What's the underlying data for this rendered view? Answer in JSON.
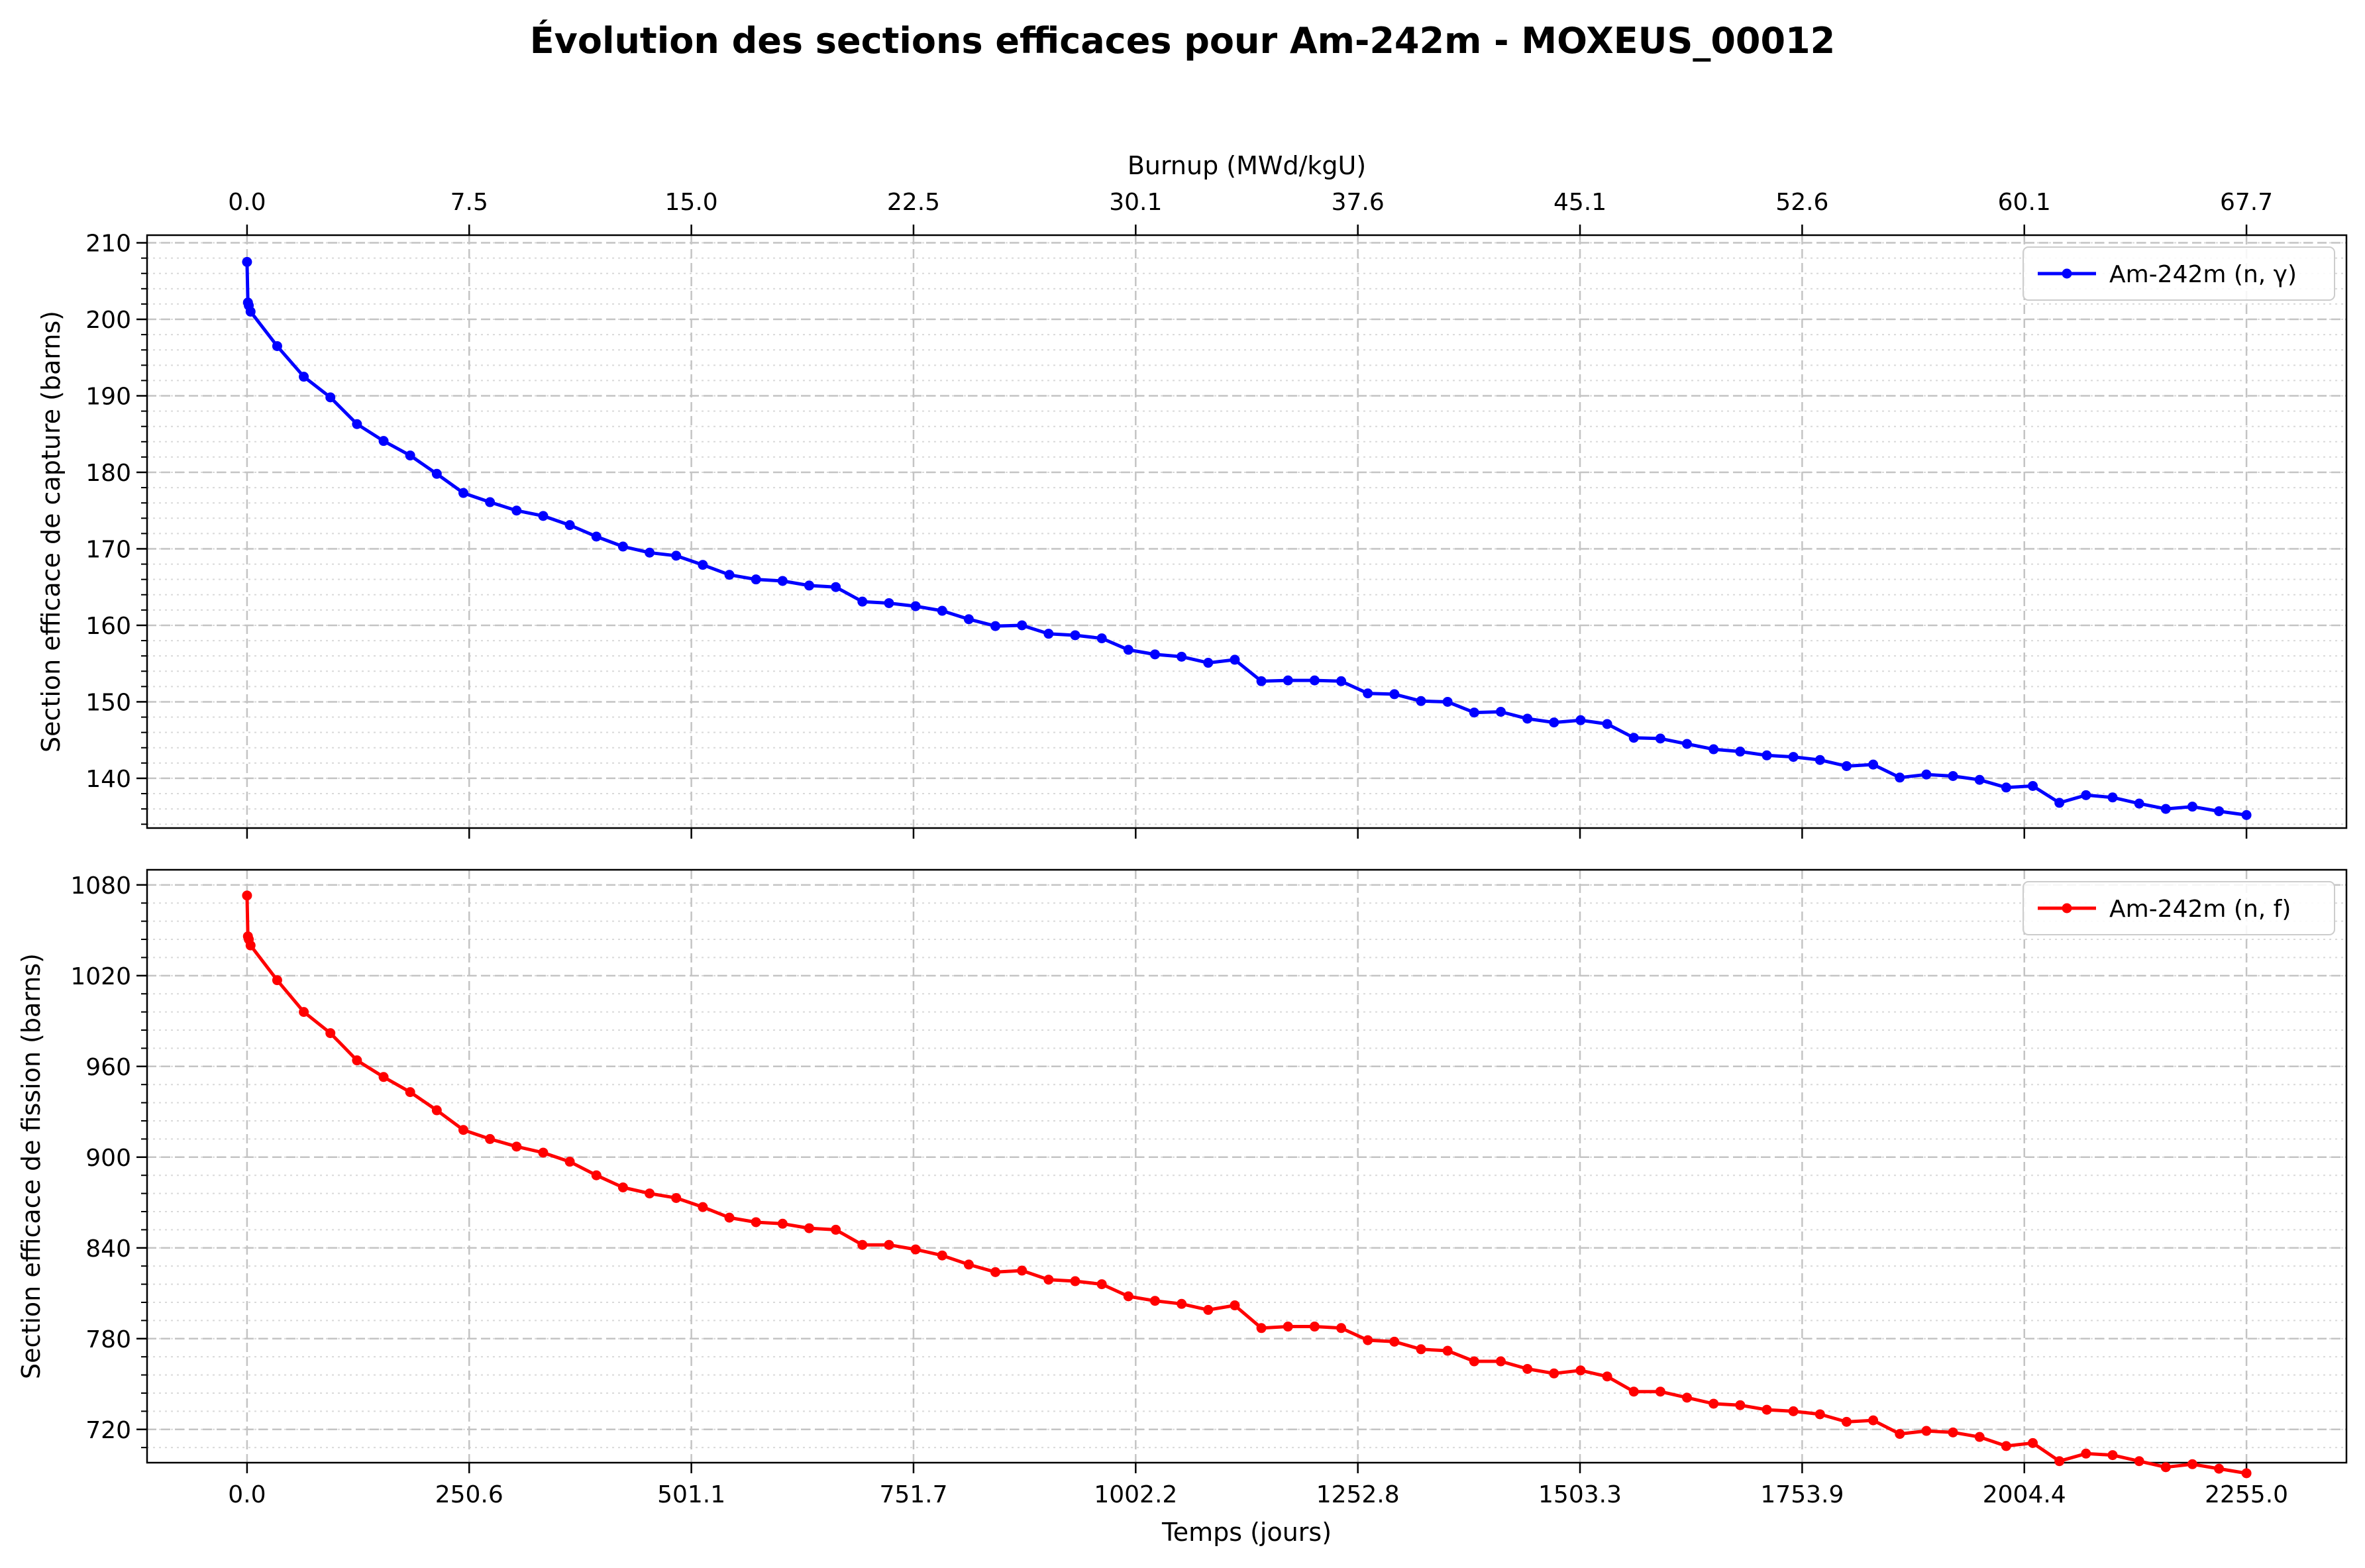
{
  "figure_title": "Évolution des sections efficaces pour Am-242m - MOXEUS_00012",
  "chart_data": [
    {
      "type": "line",
      "title": "Évolution des sections efficaces pour Am-242m - MOXEUS_00012",
      "xlabel": "",
      "top_xlabel": "Burnup (MWd/kgU)",
      "top_xticks": [
        "0.0",
        "7.5",
        "15.0",
        "22.5",
        "30.1",
        "37.6",
        "45.1",
        "52.6",
        "60.1",
        "67.7"
      ],
      "ylabel": "Section efficace de capture (barns)",
      "yticks": [
        140,
        150,
        160,
        170,
        180,
        190,
        200,
        210
      ],
      "ylim": [
        133.5,
        211
      ],
      "xlim": [
        -112.75,
        2367.75
      ],
      "grid": true,
      "legend_position": "top-right",
      "series": [
        {
          "name": "Am-242m (n, γ)",
          "color": "#0000ff",
          "x": [
            0,
            1,
            2,
            4,
            34,
            64,
            94,
            124,
            154,
            184,
            214,
            244,
            274,
            304,
            334,
            364,
            394,
            424,
            454,
            484,
            514,
            544,
            574,
            604,
            634,
            664,
            694,
            724,
            754,
            784,
            814,
            844,
            874,
            904,
            934,
            964,
            994,
            1024,
            1054,
            1084,
            1114,
            1144,
            1174,
            1204,
            1234,
            1264,
            1294,
            1324,
            1354,
            1384,
            1414,
            1444,
            1474,
            1504,
            1534,
            1564,
            1594,
            1624,
            1654,
            1684,
            1714,
            1744,
            1774,
            1804,
            1834,
            1864,
            1894,
            1924,
            1954,
            1984,
            2014,
            2044,
            2074,
            2104,
            2134,
            2164,
            2194,
            2224,
            2255
          ],
          "values": [
            207.5,
            202.2,
            201.8,
            201.0,
            196.5,
            192.5,
            189.8,
            186.3,
            184.1,
            182.2,
            179.8,
            177.3,
            176.1,
            175.0,
            174.3,
            173.1,
            171.6,
            170.3,
            169.5,
            169.1,
            167.9,
            166.6,
            166.0,
            165.8,
            165.2,
            165.0,
            163.1,
            162.9,
            162.5,
            161.9,
            160.8,
            159.9,
            160.0,
            158.9,
            158.7,
            158.3,
            156.8,
            156.2,
            155.9,
            155.1,
            155.5,
            152.7,
            152.8,
            152.8,
            152.7,
            151.1,
            151.0,
            150.1,
            150.0,
            148.6,
            148.7,
            147.8,
            147.3,
            147.6,
            147.1,
            145.3,
            145.2,
            144.5,
            143.8,
            143.5,
            143.0,
            142.8,
            142.4,
            141.6,
            141.8,
            140.1,
            140.5,
            140.3,
            139.8,
            138.8,
            139.0,
            136.8,
            137.8,
            137.5,
            136.7,
            136.0,
            136.3,
            135.7,
            135.2
          ]
        }
      ]
    },
    {
      "type": "line",
      "title": "",
      "xlabel": "Temps (jours)",
      "xticks": [
        "0.0",
        "250.6",
        "501.1",
        "751.7",
        "1002.2",
        "1252.8",
        "1503.3",
        "1753.9",
        "2004.4",
        "2255.0"
      ],
      "ylabel": "Section efficace de fission (barns)",
      "yticks": [
        720,
        780,
        840,
        900,
        960,
        1020,
        1080
      ],
      "ylim": [
        698,
        1090
      ],
      "xlim": [
        -112.75,
        2367.75
      ],
      "grid": true,
      "legend_position": "top-right",
      "series": [
        {
          "name": "Am-242m (n, f)",
          "color": "#ff0000",
          "x": [
            0,
            1,
            2,
            4,
            34,
            64,
            94,
            124,
            154,
            184,
            214,
            244,
            274,
            304,
            334,
            364,
            394,
            424,
            454,
            484,
            514,
            544,
            574,
            604,
            634,
            664,
            694,
            724,
            754,
            784,
            814,
            844,
            874,
            904,
            934,
            964,
            994,
            1024,
            1054,
            1084,
            1114,
            1144,
            1174,
            1204,
            1234,
            1264,
            1294,
            1324,
            1354,
            1384,
            1414,
            1444,
            1474,
            1504,
            1534,
            1564,
            1594,
            1624,
            1654,
            1684,
            1714,
            1744,
            1774,
            1804,
            1834,
            1864,
            1894,
            1924,
            1954,
            1984,
            2014,
            2044,
            2074,
            2104,
            2134,
            2164,
            2194,
            2224,
            2255
          ],
          "values": [
            1073,
            1046,
            1044,
            1040,
            1017,
            996,
            982,
            964,
            953,
            943,
            931,
            918,
            912,
            907,
            903,
            897,
            888,
            880,
            876,
            873,
            867,
            860,
            857,
            856,
            853,
            852,
            842,
            842,
            839,
            835,
            829,
            824,
            825,
            819,
            818,
            816,
            808,
            805,
            803,
            799,
            802,
            787,
            788,
            788,
            787,
            779,
            778,
            773,
            772,
            765,
            765,
            760,
            757,
            759,
            755,
            745,
            745,
            741,
            737,
            736,
            733,
            732,
            730,
            725,
            726,
            717,
            719,
            718,
            715,
            709,
            711,
            699,
            704,
            703,
            699,
            695,
            697,
            694,
            691
          ]
        }
      ]
    }
  ]
}
